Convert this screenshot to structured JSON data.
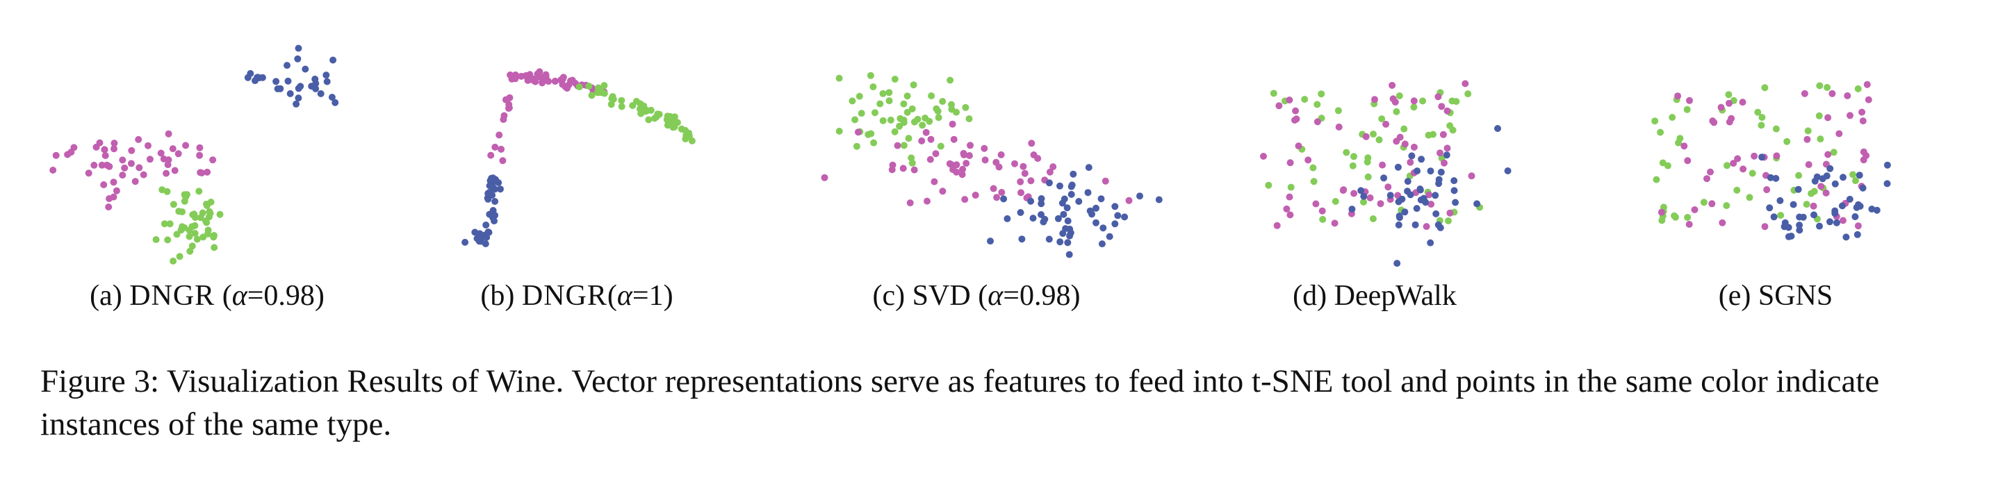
{
  "figure": {
    "caption": "Figure 3: Visualization Results of Wine. Vector representations serve as features to feed into t-SNE tool and points in the same color indicate instances of the same type."
  },
  "colors": {
    "class1": "#4a5ea7",
    "class2": "#c15fb0",
    "class3": "#84cc58"
  },
  "panels": [
    {
      "label": "(a)",
      "method": "DNGR",
      "param": " (",
      "alpha_sym": "α",
      "value": "=0.98)"
    },
    {
      "label": "(b)",
      "method": "DNGR",
      "param": "(",
      "alpha_sym": "α",
      "value": "=1)"
    },
    {
      "label": "(c)",
      "method": "SVD",
      "param": " (",
      "alpha_sym": "α",
      "value": "=0.98)"
    },
    {
      "label": "(d)",
      "method": "DeepWalk"
    },
    {
      "label": "(e)",
      "method": "SGNS"
    }
  ],
  "chart_data": [
    {
      "type": "scatter",
      "title": "DNGR (α=0.98)",
      "axes": "none",
      "series": []
    },
    {
      "type": "scatter",
      "title": "DNGR(α=1)",
      "axes": "none",
      "series": []
    },
    {
      "type": "scatter",
      "title": "SVD (α=0.98)",
      "axes": "none",
      "series": []
    },
    {
      "type": "scatter",
      "title": "DeepWalk",
      "axes": "none",
      "series": []
    },
    {
      "type": "scatter",
      "title": "SGNS",
      "axes": "none",
      "series": []
    }
  ]
}
